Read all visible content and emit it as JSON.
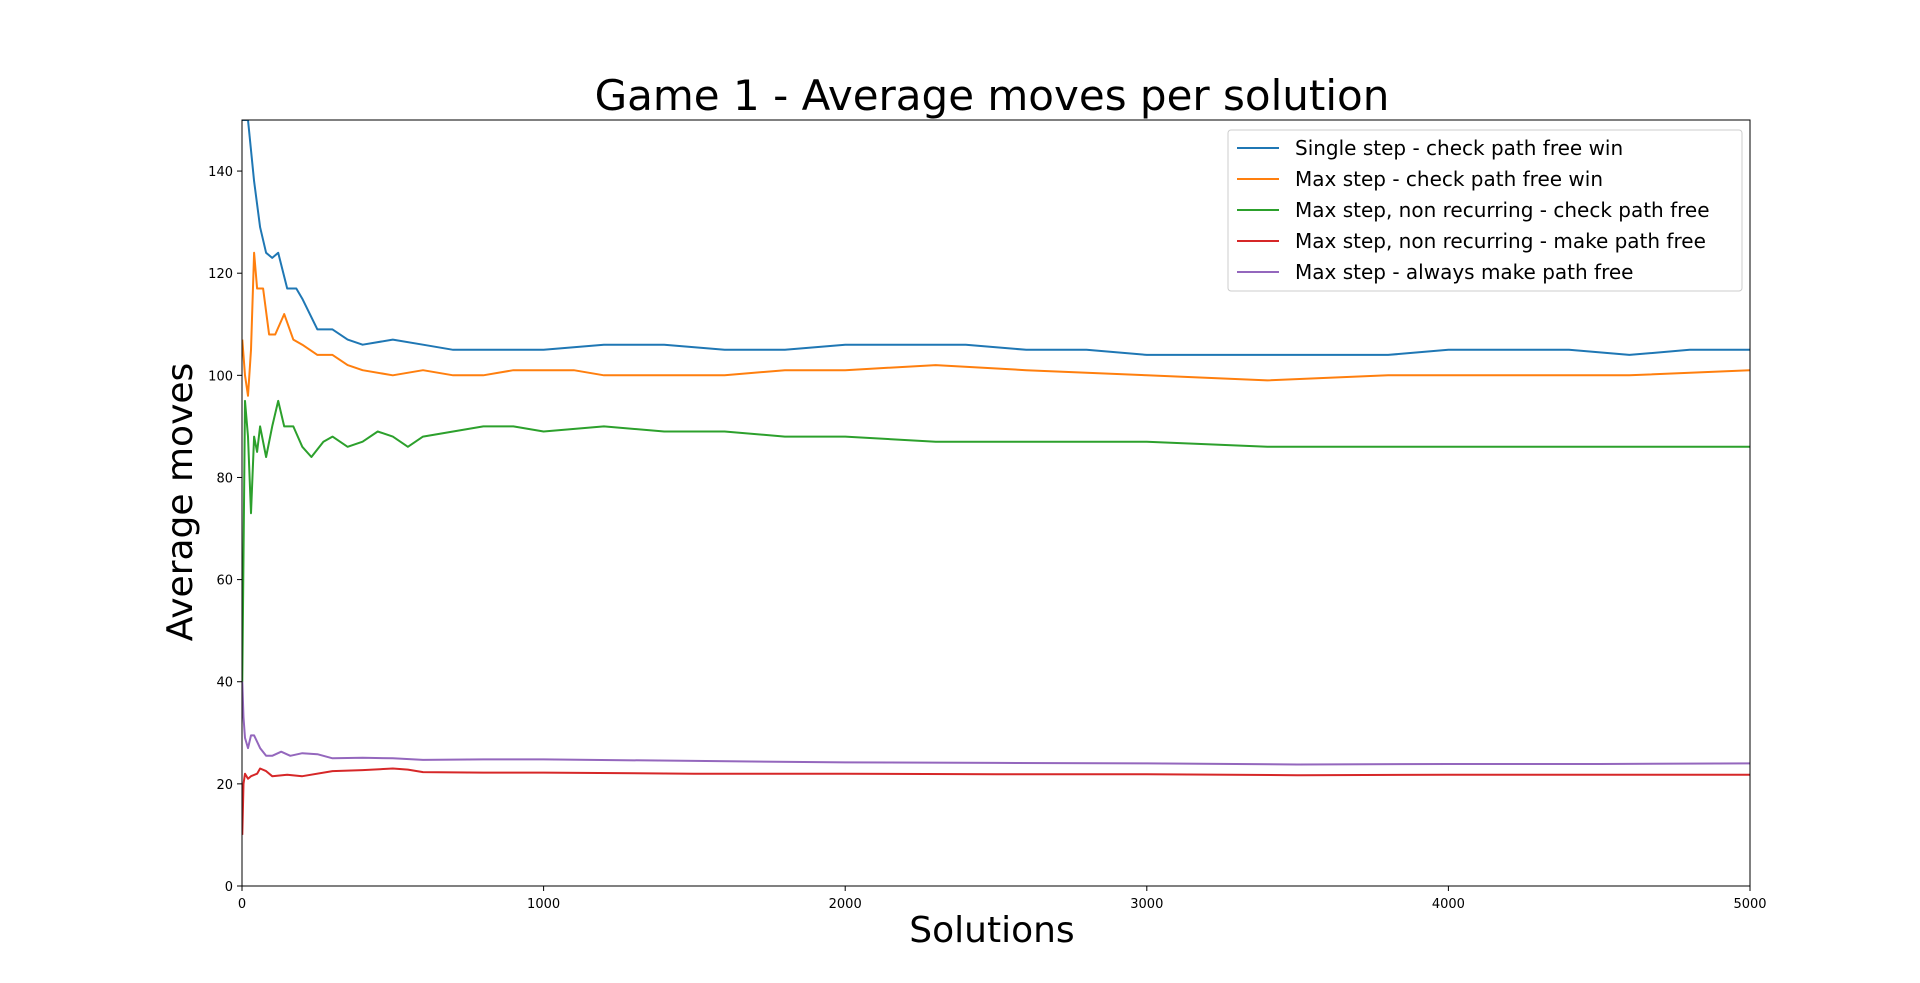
{
  "chart_data": {
    "type": "line",
    "title": "Game 1 - Average moves per solution",
    "xlabel": "Solutions",
    "ylabel": "Average moves",
    "xlim": [
      0,
      5000
    ],
    "ylim": [
      0,
      150
    ],
    "xticks": [
      0,
      1000,
      2000,
      3000,
      4000,
      5000
    ],
    "yticks": [
      0,
      20,
      40,
      60,
      80,
      100,
      120,
      140
    ],
    "grid": false,
    "legend_position": "top-right",
    "series": [
      {
        "name": "Single step - check path free win",
        "color": "#1f77b4",
        "x": [
          1,
          20,
          40,
          60,
          80,
          100,
          120,
          150,
          180,
          200,
          250,
          300,
          350,
          400,
          500,
          600,
          700,
          800,
          900,
          1000,
          1200,
          1400,
          1600,
          1800,
          2000,
          2200,
          2400,
          2600,
          2800,
          3000,
          3200,
          3400,
          3600,
          3800,
          4000,
          4200,
          4400,
          4600,
          4800,
          5000
        ],
        "y": [
          150,
          150,
          138,
          129,
          124,
          123,
          124,
          117,
          117,
          115,
          109,
          109,
          107,
          106,
          107,
          106,
          105,
          105,
          105,
          105,
          106,
          106,
          105,
          105,
          106,
          106,
          106,
          105,
          105,
          104,
          104,
          104,
          104,
          104,
          105,
          105,
          105,
          104,
          105,
          105
        ]
      },
      {
        "name": "Max step - check path free win",
        "color": "#ff7f0e",
        "x": [
          1,
          10,
          20,
          30,
          40,
          50,
          70,
          90,
          110,
          140,
          170,
          200,
          250,
          300,
          350,
          400,
          500,
          600,
          700,
          800,
          900,
          1000,
          1100,
          1200,
          1400,
          1600,
          1800,
          2000,
          2300,
          2600,
          3000,
          3400,
          3800,
          4200,
          4600,
          5000
        ],
        "y": [
          107,
          100,
          96,
          105,
          124,
          117,
          117,
          108,
          108,
          112,
          107,
          106,
          104,
          104,
          102,
          101,
          100,
          101,
          100,
          100,
          101,
          101,
          101,
          100,
          100,
          100,
          101,
          101,
          102,
          101,
          100,
          99,
          100,
          100,
          100,
          101
        ]
      },
      {
        "name": "Max step, non recurring - check path free",
        "color": "#2ca02c",
        "x": [
          1,
          10,
          20,
          30,
          40,
          50,
          60,
          80,
          100,
          120,
          140,
          170,
          200,
          230,
          270,
          300,
          350,
          400,
          450,
          500,
          550,
          600,
          700,
          800,
          900,
          1000,
          1200,
          1400,
          1600,
          1800,
          2000,
          2300,
          2600,
          3000,
          3400,
          3800,
          4200,
          4600,
          5000
        ],
        "y": [
          40,
          95,
          88,
          73,
          88,
          85,
          90,
          84,
          90,
          95,
          90,
          90,
          86,
          84,
          87,
          88,
          86,
          87,
          89,
          88,
          86,
          88,
          89,
          90,
          90,
          89,
          90,
          89,
          89,
          88,
          88,
          87,
          87,
          87,
          86,
          86,
          86,
          86,
          86
        ]
      },
      {
        "name": "Max step, non recurring - make path free",
        "color": "#d62728",
        "x": [
          1,
          5,
          10,
          20,
          30,
          50,
          60,
          80,
          100,
          150,
          200,
          300,
          400,
          500,
          550,
          600,
          800,
          1000,
          1500,
          2000,
          2500,
          3000,
          3500,
          4000,
          4500,
          5000
        ],
        "y": [
          10,
          20,
          22,
          21,
          21.5,
          22,
          23,
          22.5,
          21.5,
          21.8,
          21.5,
          22.5,
          22.7,
          23,
          22.8,
          22.3,
          22.2,
          22.2,
          22.0,
          22.0,
          21.9,
          21.9,
          21.7,
          21.8,
          21.8,
          21.8
        ]
      },
      {
        "name": "Max step - always make path free",
        "color": "#9467bd",
        "x": [
          1,
          5,
          10,
          20,
          30,
          40,
          60,
          80,
          100,
          130,
          160,
          200,
          250,
          300,
          400,
          500,
          600,
          800,
          1000,
          1500,
          2000,
          2500,
          3000,
          3500,
          4000,
          4500,
          5000
        ],
        "y": [
          40,
          33,
          29,
          27,
          29.5,
          29.5,
          27,
          25.5,
          25.5,
          26.3,
          25.5,
          26,
          25.8,
          25,
          25.1,
          25,
          24.7,
          24.8,
          24.8,
          24.5,
          24.2,
          24.1,
          24.0,
          23.8,
          23.9,
          23.9,
          24.0
        ]
      }
    ]
  }
}
